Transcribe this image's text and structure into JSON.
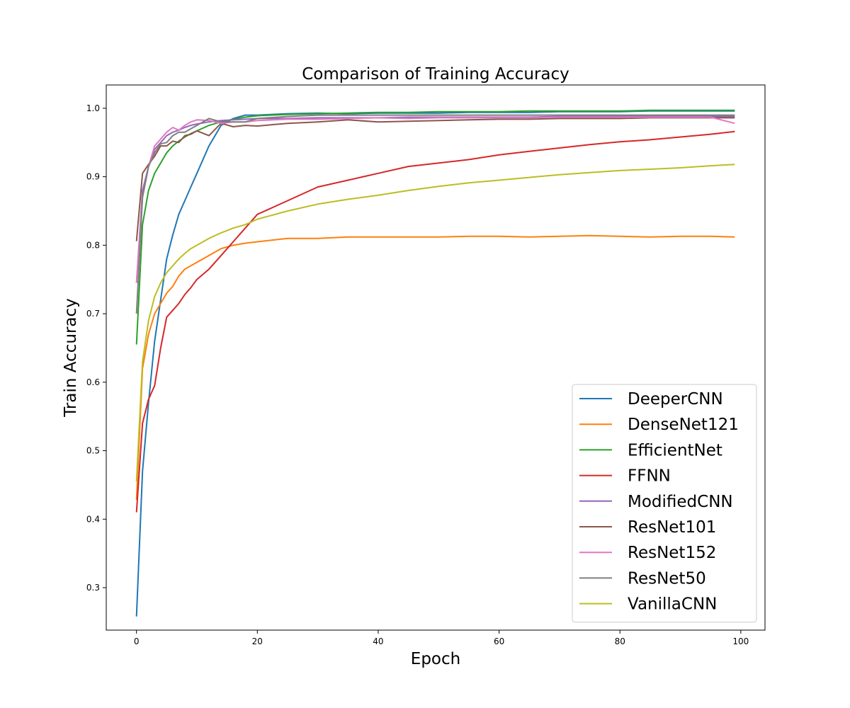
{
  "chart_data": {
    "type": "line",
    "title": "Comparison of Training Accuracy",
    "xlabel": "Epoch",
    "ylabel": "Train Accuracy",
    "xlim": [
      -5,
      104
    ],
    "ylim": [
      0.238,
      1.034
    ],
    "xticks": [
      0,
      20,
      40,
      60,
      80,
      100
    ],
    "yticks": [
      0.3,
      0.4,
      0.5,
      0.6,
      0.7,
      0.8,
      0.9,
      1.0
    ],
    "grid": false,
    "legend_position": "lower-right",
    "x_keypoints_note": "series values are given at shared key epochs",
    "x": [
      0,
      1,
      2,
      3,
      4,
      5,
      6,
      7,
      8,
      9,
      10,
      12,
      14,
      16,
      18,
      20,
      25,
      30,
      35,
      40,
      45,
      50,
      55,
      60,
      65,
      70,
      75,
      80,
      85,
      90,
      95,
      99
    ],
    "series": [
      {
        "name": "DeeperCNN",
        "color": "#1f77b4",
        "values": [
          0.258,
          0.47,
          0.57,
          0.66,
          0.72,
          0.78,
          0.815,
          0.845,
          0.865,
          0.885,
          0.905,
          0.945,
          0.975,
          0.985,
          0.99,
          0.99,
          0.992,
          0.993,
          0.992,
          0.993,
          0.993,
          0.993,
          0.994,
          0.994,
          0.994,
          0.995,
          0.995,
          0.995,
          0.996,
          0.996,
          0.996,
          0.996
        ]
      },
      {
        "name": "DenseNet121",
        "color": "#ff7f0e",
        "values": [
          0.428,
          0.62,
          0.67,
          0.7,
          0.715,
          0.73,
          0.74,
          0.755,
          0.765,
          0.77,
          0.775,
          0.785,
          0.795,
          0.8,
          0.803,
          0.805,
          0.81,
          0.81,
          0.812,
          0.812,
          0.812,
          0.812,
          0.813,
          0.813,
          0.812,
          0.813,
          0.814,
          0.813,
          0.812,
          0.813,
          0.813,
          0.812
        ]
      },
      {
        "name": "EfficientNet",
        "color": "#2ca02c",
        "values": [
          0.655,
          0.83,
          0.88,
          0.905,
          0.92,
          0.935,
          0.945,
          0.952,
          0.958,
          0.963,
          0.967,
          0.975,
          0.98,
          0.984,
          0.987,
          0.989,
          0.991,
          0.992,
          0.993,
          0.994,
          0.994,
          0.995,
          0.995,
          0.995,
          0.996,
          0.996,
          0.996,
          0.996,
          0.997,
          0.997,
          0.997,
          0.997
        ]
      },
      {
        "name": "FFNN",
        "color": "#d62728",
        "values": [
          0.41,
          0.54,
          0.575,
          0.595,
          0.65,
          0.695,
          0.705,
          0.715,
          0.728,
          0.738,
          0.75,
          0.765,
          0.785,
          0.805,
          0.825,
          0.845,
          0.865,
          0.885,
          0.895,
          0.905,
          0.915,
          0.92,
          0.925,
          0.932,
          0.937,
          0.942,
          0.947,
          0.951,
          0.954,
          0.958,
          0.962,
          0.966
        ]
      },
      {
        "name": "ModifiedCNN",
        "color": "#9467bd",
        "values": [
          0.745,
          0.88,
          0.915,
          0.94,
          0.95,
          0.96,
          0.965,
          0.968,
          0.972,
          0.975,
          0.977,
          0.98,
          0.982,
          0.983,
          0.984,
          0.985,
          0.985,
          0.986,
          0.986,
          0.986,
          0.987,
          0.987,
          0.987,
          0.987,
          0.987,
          0.988,
          0.988,
          0.988,
          0.988,
          0.988,
          0.988,
          0.988
        ]
      },
      {
        "name": "ResNet101",
        "color": "#8c564b",
        "values": [
          0.806,
          0.905,
          0.918,
          0.93,
          0.945,
          0.945,
          0.952,
          0.95,
          0.96,
          0.962,
          0.967,
          0.96,
          0.978,
          0.973,
          0.975,
          0.974,
          0.978,
          0.98,
          0.983,
          0.98,
          0.981,
          0.982,
          0.983,
          0.984,
          0.984,
          0.985,
          0.985,
          0.985,
          0.986,
          0.986,
          0.986,
          0.986
        ]
      },
      {
        "name": "ResNet152",
        "color": "#e377c2",
        "values": [
          0.745,
          0.87,
          0.915,
          0.945,
          0.955,
          0.965,
          0.972,
          0.968,
          0.975,
          0.98,
          0.983,
          0.982,
          0.978,
          0.98,
          0.98,
          0.982,
          0.984,
          0.984,
          0.985,
          0.986,
          0.985,
          0.986,
          0.986,
          0.986,
          0.986,
          0.987,
          0.987,
          0.987,
          0.987,
          0.987,
          0.987,
          0.978
        ]
      },
      {
        "name": "ResNet50",
        "color": "#7f7f7f",
        "values": [
          0.7,
          0.87,
          0.915,
          0.935,
          0.948,
          0.95,
          0.96,
          0.965,
          0.965,
          0.97,
          0.975,
          0.985,
          0.98,
          0.98,
          0.98,
          0.985,
          0.988,
          0.99,
          0.99,
          0.99,
          0.99,
          0.99,
          0.99,
          0.99,
          0.99,
          0.99,
          0.99,
          0.99,
          0.99,
          0.99,
          0.99,
          0.99
        ]
      },
      {
        "name": "VanillaCNN",
        "color": "#bcbd22",
        "values": [
          0.455,
          0.63,
          0.69,
          0.725,
          0.745,
          0.76,
          0.77,
          0.78,
          0.788,
          0.795,
          0.8,
          0.81,
          0.818,
          0.825,
          0.83,
          0.838,
          0.85,
          0.86,
          0.867,
          0.873,
          0.88,
          0.886,
          0.891,
          0.895,
          0.899,
          0.903,
          0.906,
          0.909,
          0.911,
          0.913,
          0.916,
          0.918
        ]
      }
    ]
  }
}
